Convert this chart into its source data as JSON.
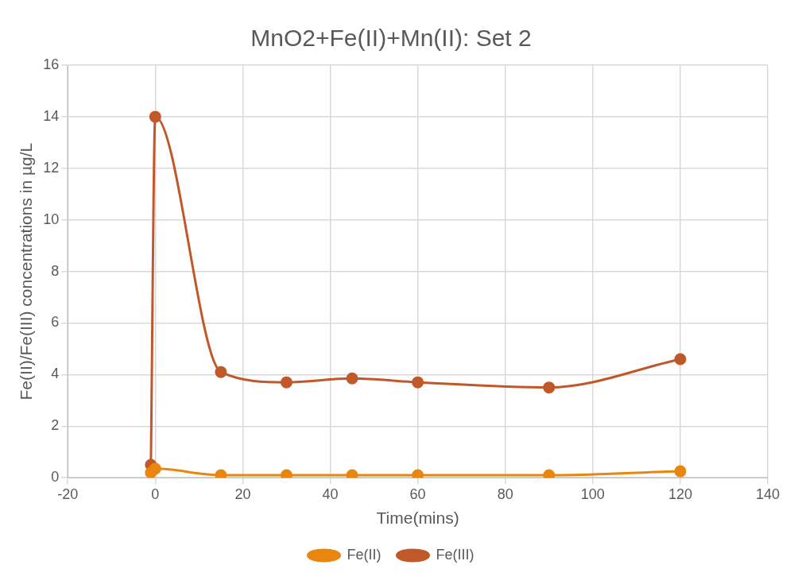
{
  "chart_data": {
    "type": "line",
    "title": "MnO2+Fe(II)+Mn(II): Set 2",
    "xlabel": "Time(mins)",
    "ylabel": "Fe(II)/Fe(III) concentrations in µg/L",
    "x": [
      -1,
      0,
      15,
      30,
      45,
      60,
      90,
      120
    ],
    "series": [
      {
        "name": "Fe(II)",
        "color": "#e8860f",
        "values": [
          0.2,
          0.35,
          0.1,
          0.1,
          0.1,
          0.1,
          0.1,
          0.25
        ]
      },
      {
        "name": "Fe(III)",
        "color": "#c0582a",
        "values": [
          0.5,
          14,
          4.1,
          3.7,
          3.85,
          3.7,
          3.5,
          4.6
        ]
      }
    ],
    "xlim": [
      -20,
      140
    ],
    "xticks": [
      -20,
      0,
      20,
      40,
      60,
      80,
      100,
      120,
      140
    ],
    "ylim": [
      0,
      16
    ],
    "yticks": [
      0,
      2,
      4,
      6,
      8,
      10,
      12,
      14,
      16
    ],
    "grid": true,
    "legend": "bottom",
    "marker": "circle",
    "line_style": "solid"
  }
}
